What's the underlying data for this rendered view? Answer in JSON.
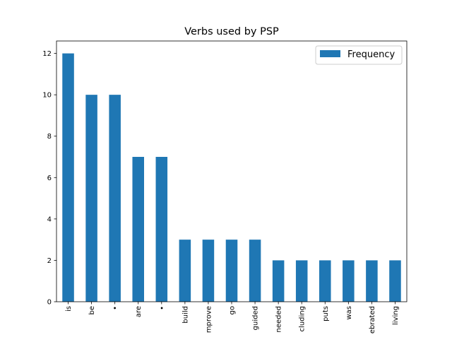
{
  "chart_data": {
    "type": "bar",
    "title": "Verbs used by PSP",
    "xlabel": "",
    "ylabel": "",
    "categories": [
      "is",
      "be",
      "•",
      "are",
      "•",
      "build",
      "mprove",
      "go",
      "guided",
      "needed",
      "cluding",
      "puts",
      "was",
      "ebrated",
      "living"
    ],
    "series": [
      {
        "name": "Frequency",
        "values": [
          12,
          10,
          10,
          7,
          7,
          3,
          3,
          3,
          3,
          2,
          2,
          2,
          2,
          2,
          2
        ],
        "color": "#1f77b4"
      }
    ],
    "ylim": [
      0,
      12.6
    ],
    "yticks": [
      0,
      2,
      4,
      6,
      8,
      10,
      12
    ],
    "grid": false,
    "legend_position": "top-right"
  }
}
